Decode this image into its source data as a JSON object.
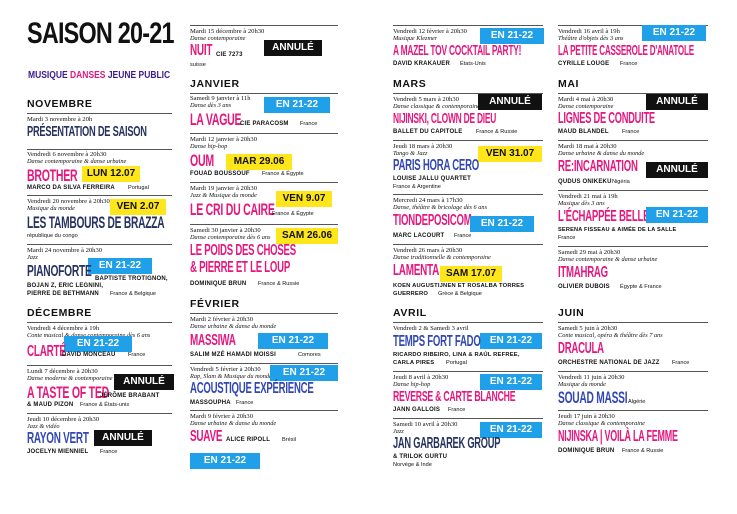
{
  "header": {
    "title": "SAISON 20-21",
    "sub1": "MUSIQUE",
    "sub2": "DANSES",
    "sub3": "JEUNE PUBLIC"
  },
  "months": {
    "novembre": "NOVEMBRE",
    "decembre": "DÉCEMBRE",
    "janvier": "JANVIER",
    "fevrier": "FÉVRIER",
    "mars": "MARS",
    "avril": "AVRIL",
    "mai": "MAI",
    "juin": "JUIN"
  },
  "events": {
    "e1": {
      "date": "Mardi 3 novembre à 20h",
      "title": "PRÉSENTATION DE SAISON"
    },
    "e2": {
      "date": "Vendredi 6 novembre à 20h30",
      "cat": "Danse contemporaine & danse urbaine",
      "title": "BROTHER",
      "badge": "LUN 12.07",
      "company": "MARCO DA SILVA FERREIRA",
      "origin": "Portugal"
    },
    "e3": {
      "date": "Vendredi 20 novembre à 20h30",
      "cat": "Musique du monde",
      "title": "LES TAMBOURS DE BRAZZA",
      "badge": "VEN 2.07",
      "origin": "république du congo"
    },
    "e4": {
      "date": "Mardi 24 novembre à 20h30",
      "cat": "Jazz",
      "title": "PIANOFORTE",
      "badge": "EN 21-22",
      "company1": "BAPTISTE TROTIGNON,",
      "company2": "BOJAN Z, ERIC LEGNINI,",
      "company3": "PIERRE DE BETHMANN",
      "origin": "France & Belgique"
    },
    "e5": {
      "date": "Vendredi 4 décembre à 19h",
      "cat": "Conte musical & danse contemporaine dès 6 ans",
      "title": "CLARTÉ",
      "badge": "EN 21-22",
      "company": "DAVID MONCEAU",
      "origin": "France"
    },
    "e6": {
      "date": "Lundi 7 décembre à 20h30",
      "cat": "Danse moderne & contemporaine",
      "title": "A TASTE OF TED",
      "badge": "ANNULÉ",
      "company1": "JÉRÔME BRABANT",
      "company2": "& MAUD PIZON",
      "origin": "France & États-unis"
    },
    "e7": {
      "date": "Jeudi 10 décembre à 20h30",
      "cat": "Jazz & vidéo",
      "title": "RAYON VERT",
      "badge": "ANNULÉ",
      "company": "JOCELYN MIENNIEL",
      "origin": "France"
    },
    "e8": {
      "date": "Mardi 15 décembre à 20h30",
      "cat": "Danse contemporaine",
      "title": "NUIT",
      "badge": "ANNULÉ",
      "company": "CIE 7273",
      "origin": "suisse"
    },
    "e9": {
      "date": "Samedi 9 janvier à 11h",
      "cat": "Danse dès 3 ans",
      "title": "LA VAGUE",
      "badge": "EN 21-22",
      "company": "CIE PARACOSM",
      "origin": "France"
    },
    "e10": {
      "date": "Mardi 12 janvier à 20h30",
      "cat": "Danse hip-hop",
      "title": "OUM",
      "badge": "MAR 29.06",
      "company": "FOUAD BOUSSOUF",
      "origin": "France & Égypte"
    },
    "e11": {
      "date": "Mardi 19 janvier à 20h30",
      "cat": "Jazz & Musique du monde",
      "title": "LE CRI DU CAIRE",
      "badge": "VEN 9.07",
      "origin": "France & Égypte"
    },
    "e12": {
      "date": "Samedi 30 janvier à 20h30",
      "cat": "Danse contemporaine dès 6 ans",
      "title1": "LE POIDS DES CHOSES",
      "title2": "& PIERRE ET LE LOUP",
      "badge": "SAM 26.06",
      "company": "DOMINIQUE BRUN",
      "origin": "France & Russie"
    },
    "e13": {
      "date": "Mardi 2 février à 20h30",
      "cat": "Danse urbaine & danse du monde",
      "title": "MASSIWA",
      "badge": "EN 21-22",
      "company": "SALIM MZÉ HAMADI MOISSI",
      "origin": "Comores"
    },
    "e14": {
      "date": "Vendredi 5 février à 20h30",
      "cat": "Rap, Slam & Musique du monde",
      "title": "ACOUSTIQUE EXPÉRIENCE",
      "badge": "EN 21-22",
      "company": "MASSOUPHA",
      "origin": "France"
    },
    "e15": {
      "date": "Mardi 9 février à 20h30",
      "cat": "Danse urbaine & danse du monde",
      "title": "SUAVE",
      "company": "ALICE RIPOLL",
      "origin": "Brésil",
      "badge": "EN 21-22"
    },
    "e16": {
      "date": "Vendredi 12 février à 20h30",
      "cat": "Musique Klezmer",
      "title": "A MAZEL TOV COCKTAIL PARTY!",
      "badge": "EN 21-22",
      "company": "DAVID KRAKAUER",
      "origin": "États-Unis"
    },
    "e17": {
      "date": "Vendredi 5 mars à 20h30",
      "cat": "Danse classique & contemporaine",
      "title": "NIJINSKI, CLOWN DE DIEU",
      "badge": "ANNULÉ",
      "company": "BALLET DU CAPITOLE",
      "origin": "France & Russie"
    },
    "e18": {
      "date": "Jeudi 18 mars à 20h30",
      "cat": "Tango & Jazz",
      "title": "PARIS HORA CERO",
      "badge": "VEN 31.07",
      "company": "LOUISE JALLU QUARTET",
      "origin": "France & Argentine"
    },
    "e19": {
      "date": "Mercredi 24 mars à 17h30",
      "cat": "Danse, théâtre & bricolage dès 6 ans",
      "title": "TIONDEPOSICOM",
      "badge": "EN 21-22",
      "company": "MARC LACOURT",
      "origin": "France"
    },
    "e20": {
      "date": "Vendredi 26 mars à 20h30",
      "cat": "Danse traditionnelle & contemporaine",
      "title": "LAMENTA",
      "badge": "SAM 17.07",
      "company1": "KOEN AUGUSTIJNEN ET ROSALBA TORRES",
      "company2": "GUERRERO",
      "origin": "Grèce & Belgique"
    },
    "e21": {
      "date": "Vendredi 2 & Samedi 3 avril",
      "title": "TEMPS FORT FADO",
      "badge": "EN 21-22",
      "company1": "RICARDO RIBEIRO, LINA & RAÚL REFREE,",
      "company2": "CARLA PIRES",
      "origin": "Portugal"
    },
    "e22": {
      "date": "Jeudi 8 avril à 20h30",
      "cat": "Danse hip-hop",
      "title": "REVERSE & CARTE BLANCHE",
      "badge": "EN 21-22",
      "company": "JANN GALLOIS",
      "origin": "France"
    },
    "e23": {
      "date": "Samedi 10 avril à 20h30",
      "cat": "Jazz",
      "title": "JAN GARBAREK GROUP",
      "badge": "EN 21-22",
      "company": "& TRILOK GURTU",
      "origin": "Norvège & Inde"
    },
    "e24": {
      "date": "Vendredi 16 avril à 19h",
      "cat": "Théâtre d'objets dès 3 ans",
      "title": "LA PETITE CASSEROLE D'ANATOLE",
      "badge": "EN 21-22",
      "company": "CYRILLE LOUGE",
      "origin": "France"
    },
    "e25": {
      "date": "Mardi 4 mai à 20h30",
      "cat": "Danse contemporaine",
      "title": "LIGNES DE CONDUITE",
      "badge": "ANNULÉ",
      "company": "MAUD BLANDEL",
      "origin": "France"
    },
    "e26": {
      "date": "Mardi 18 mai à 20h30",
      "cat": "Danse urbaine & danse du monde",
      "title": "RE:INCARNATION",
      "badge": "ANNULÉ",
      "company": "QUDUS ONIKEKU",
      "origin": "Nigéria"
    },
    "e27": {
      "date": "Vendredi 21 mai à 19h",
      "cat": "Musique dès 3 ans",
      "title": "L'ÉCHAPPÉE BELLE",
      "badge": "EN 21-22",
      "company": "SERENA FISSEAU & AIMÉE DE LA SALLE",
      "origin": "France"
    },
    "e28": {
      "date": "Samedi 29 mai à 20h30",
      "cat": "Danse contemporaine & danse urbaine",
      "title": "ITMAHRAG",
      "company": "OLIVIER DUBOIS",
      "origin": "Égypte & France"
    },
    "e29": {
      "date": "Samedi 5 juin à 20h30",
      "cat": "Conte musical, opéra & théâtre dès 7 ans",
      "title": "DRACULA",
      "company": "ORCHESTRE NATIONAL DE JAZZ",
      "origin": "France"
    },
    "e30": {
      "date": "Vendredi 11 juin à 20h30",
      "cat": "Musique du monde",
      "title": "SOUAD MASSI",
      "origin": "Algérie"
    },
    "e31": {
      "date": "Jeudi 17 juin à 20h30",
      "cat": "Danse classique & contemporaine",
      "title": "NIJINSKA | VOILÀ LA FEMME",
      "company": "DOMINIQUE BRUN",
      "origin": "France & Russie"
    }
  }
}
